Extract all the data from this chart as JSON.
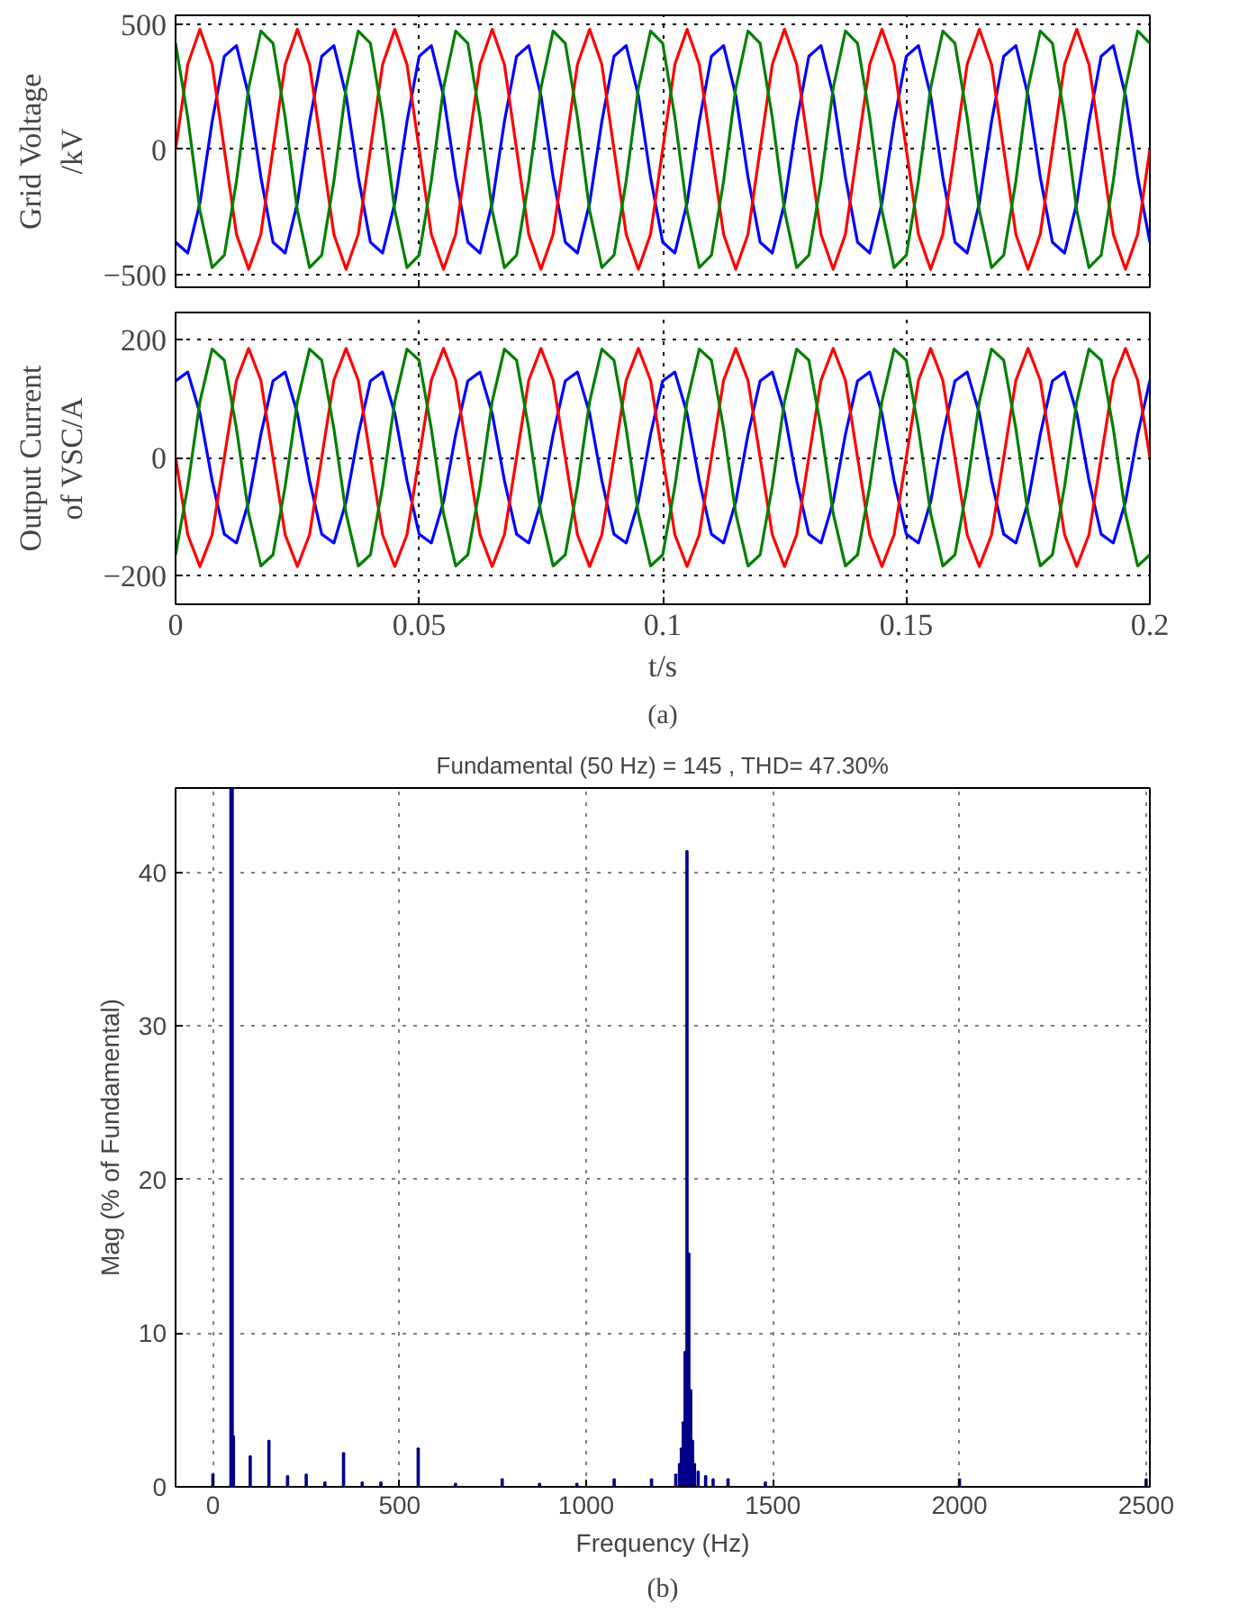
{
  "chart_data": [
    {
      "type": "line",
      "ylabel": "Grid Voltage\n/kV",
      "xlim": [
        0,
        0.2
      ],
      "ylim": [
        -552,
        536
      ],
      "xticks": [
        0,
        0.05,
        0.1,
        0.15,
        0.2
      ],
      "yticks": [
        -500,
        0,
        500
      ],
      "grid": true,
      "tick_labels": "y",
      "line_style": "solid",
      "x": [
        0,
        0.0025,
        0.005,
        0.0075,
        0.01,
        0.0125,
        0.015,
        0.0175,
        0.02,
        0.0225,
        0.025,
        0.0275,
        0.03,
        0.0325,
        0.035,
        0.0375,
        0.04,
        0.0425,
        0.045,
        0.0475,
        0.05,
        0.0525,
        0.055,
        0.0575,
        0.06,
        0.0625,
        0.065,
        0.0675,
        0.07,
        0.0725,
        0.075,
        0.0775,
        0.08,
        0.0825,
        0.085,
        0.0875,
        0.09,
        0.0925,
        0.095,
        0.0975,
        0.1,
        0.1025,
        0.105,
        0.1075,
        0.11,
        0.1125,
        0.115,
        0.1175,
        0.12,
        0.1225,
        0.125,
        0.1275,
        0.13,
        0.1325,
        0.135,
        0.1375,
        0.14,
        0.1425,
        0.145,
        0.1475,
        0.15,
        0.1525,
        0.155,
        0.1575,
        0.16,
        0.1625,
        0.165,
        0.1675,
        0.17,
        0.1725,
        0.175,
        0.1775,
        0.18,
        0.1825,
        0.185,
        0.1875,
        0.19,
        0.1925,
        0.195,
        0.1975,
        0.2
      ],
      "series": [
        {
          "color": "#0000ff",
          "values": [
            -372,
            -415,
            -215,
            111,
            372,
            415,
            215,
            -111,
            -372,
            -415,
            -215,
            111,
            372,
            415,
            215,
            -111,
            -372,
            -415,
            -215,
            111,
            372,
            415,
            215,
            -111,
            -372,
            -415,
            -215,
            111,
            372,
            415,
            215,
            -111,
            -372,
            -415,
            -215,
            111,
            372,
            415,
            215,
            -111,
            -372,
            -415,
            -215,
            111,
            372,
            415,
            215,
            -111,
            -372,
            -415,
            -215,
            111,
            372,
            415,
            215,
            -111,
            -372,
            -415,
            -215,
            111,
            372,
            415,
            215,
            -111,
            -372,
            -415,
            -215,
            111,
            372,
            415,
            215,
            -111,
            -372,
            -415,
            -215,
            111,
            372,
            415,
            215,
            -111,
            -372
          ]
        },
        {
          "color": "#ff0000",
          "values": [
            0,
            340,
            480,
            340,
            0,
            -340,
            -480,
            -340,
            0,
            340,
            480,
            340,
            0,
            -340,
            -480,
            -340,
            0,
            340,
            480,
            340,
            0,
            -340,
            -480,
            -340,
            0,
            340,
            480,
            340,
            0,
            -340,
            -480,
            -340,
            0,
            340,
            480,
            340,
            0,
            -340,
            -480,
            -340,
            0,
            340,
            480,
            340,
            0,
            -340,
            -480,
            -340,
            0,
            340,
            480,
            340,
            0,
            -340,
            -480,
            -340,
            0,
            340,
            480,
            340,
            0,
            -340,
            -480,
            -340,
            0,
            340,
            480,
            340,
            0,
            -340,
            -480,
            -340,
            0,
            340,
            480,
            340,
            0,
            -340,
            -480,
            -340,
            0
          ]
        },
        {
          "color": "#008000",
          "values": [
            424,
            127,
            -245,
            -473,
            -424,
            -127,
            245,
            473,
            424,
            127,
            -245,
            -473,
            -424,
            -127,
            245,
            473,
            424,
            127,
            -245,
            -473,
            -424,
            -127,
            245,
            473,
            424,
            127,
            -245,
            -473,
            -424,
            -127,
            245,
            473,
            424,
            127,
            -245,
            -473,
            -424,
            -127,
            245,
            473,
            424,
            127,
            -245,
            -473,
            -424,
            -127,
            245,
            473,
            424,
            127,
            -245,
            -473,
            -424,
            -127,
            245,
            473,
            424,
            127,
            -245,
            -473,
            -424,
            -127,
            245,
            473,
            424,
            127,
            -245,
            -473,
            -424,
            -127,
            245,
            473,
            424,
            127,
            -245,
            -473,
            -424,
            -127,
            245,
            473,
            424
          ]
        }
      ]
    },
    {
      "type": "line",
      "ylabel": "Output Current\nof VSC/A",
      "xlabel": "t/s",
      "annotations": [
        "(a)"
      ],
      "xlim": [
        0,
        0.2
      ],
      "ylim": [
        -249,
        246
      ],
      "xticks": [
        0,
        0.05,
        0.1,
        0.15,
        0.2
      ],
      "yticks": [
        -200,
        0,
        200
      ],
      "grid": true,
      "line_style": "solid",
      "x": [
        0,
        0.0025,
        0.005,
        0.0075,
        0.01,
        0.0125,
        0.015,
        0.0175,
        0.02,
        0.0225,
        0.025,
        0.0275,
        0.03,
        0.0325,
        0.035,
        0.0375,
        0.04,
        0.0425,
        0.045,
        0.0475,
        0.05,
        0.0525,
        0.055,
        0.0575,
        0.06,
        0.0625,
        0.065,
        0.0675,
        0.07,
        0.0725,
        0.075,
        0.0775,
        0.08,
        0.0825,
        0.085,
        0.0875,
        0.09,
        0.0925,
        0.095,
        0.0975,
        0.1,
        0.1025,
        0.105,
        0.1075,
        0.11,
        0.1125,
        0.115,
        0.1175,
        0.12,
        0.1225,
        0.125,
        0.1275,
        0.13,
        0.1325,
        0.135,
        0.1375,
        0.14,
        0.1425,
        0.145,
        0.1475,
        0.15,
        0.1525,
        0.155,
        0.1575,
        0.16,
        0.1625,
        0.165,
        0.1675,
        0.17,
        0.1725,
        0.175,
        0.1775,
        0.18,
        0.1825,
        0.185,
        0.1875,
        0.19,
        0.1925,
        0.195,
        0.1975,
        0.2
      ],
      "series": [
        {
          "color": "#0000ff",
          "values": [
            130,
            145,
            75,
            -39,
            -130,
            -145,
            -75,
            39,
            130,
            145,
            75,
            -39,
            -130,
            -145,
            -75,
            39,
            130,
            145,
            75,
            -39,
            -130,
            -145,
            -75,
            39,
            130,
            145,
            75,
            -39,
            -130,
            -145,
            -75,
            39,
            130,
            145,
            75,
            -39,
            -130,
            -145,
            -75,
            39,
            130,
            145,
            75,
            -39,
            -130,
            -145,
            -75,
            39,
            130,
            145,
            75,
            -39,
            -130,
            -145,
            -75,
            39,
            130,
            145,
            75,
            -39,
            -130,
            -145,
            -75,
            39,
            130,
            145,
            75,
            -39,
            -130,
            -145,
            -75,
            39,
            130,
            145,
            75,
            -39,
            -130,
            -145,
            -75,
            39,
            130
          ]
        },
        {
          "color": "#ff0000",
          "values": [
            0,
            -131,
            -185,
            -131,
            0,
            131,
            185,
            131,
            0,
            -131,
            -185,
            -131,
            0,
            131,
            185,
            131,
            0,
            -131,
            -185,
            -131,
            0,
            131,
            185,
            131,
            0,
            -131,
            -185,
            -131,
            0,
            131,
            185,
            131,
            0,
            -131,
            -185,
            -131,
            0,
            131,
            185,
            131,
            0,
            -131,
            -185,
            -131,
            0,
            131,
            185,
            131,
            0,
            -131,
            -185,
            -131,
            0,
            131,
            185,
            131,
            0,
            -131,
            -185,
            -131,
            0,
            131,
            185,
            131,
            0,
            -131,
            -185,
            -131,
            0,
            131,
            185,
            131,
            0,
            -131,
            -185,
            -131,
            0,
            131,
            185,
            131,
            0
          ]
        },
        {
          "color": "#008000",
          "values": [
            -165,
            -49,
            95,
            184,
            165,
            49,
            -95,
            -184,
            -165,
            -49,
            95,
            184,
            165,
            49,
            -95,
            -184,
            -165,
            -49,
            95,
            184,
            165,
            49,
            -95,
            -184,
            -165,
            -49,
            95,
            184,
            165,
            49,
            -95,
            -184,
            -165,
            -49,
            95,
            184,
            165,
            49,
            -95,
            -184,
            -165,
            -49,
            95,
            184,
            165,
            49,
            -95,
            -184,
            -165,
            -49,
            95,
            184,
            165,
            49,
            -95,
            -184,
            -165,
            -49,
            95,
            184,
            165,
            49,
            -95,
            -184,
            -165,
            -49,
            95,
            184,
            165,
            49,
            -95,
            -184,
            -165,
            -49,
            95,
            184,
            165,
            49,
            -95,
            -184,
            -165
          ]
        }
      ]
    },
    {
      "type": "bar",
      "title": "Fundamental (50 Hz) = 145 , THD= 47.30%",
      "xlabel": "Frequency (Hz)",
      "ylabel": "Mag (% of Fundamental)",
      "annotations": [
        "(b)"
      ],
      "xlim": [
        -100,
        2510
      ],
      "ylim": [
        0,
        45.5
      ],
      "xticks": [
        0,
        500,
        1000,
        1500,
        2000,
        2500
      ],
      "yticks": [
        0,
        10,
        20,
        30,
        40
      ],
      "grid": true,
      "color": "#00008b",
      "x": [
        0,
        50,
        55,
        100,
        150,
        200,
        250,
        300,
        350,
        400,
        450,
        550,
        650,
        775,
        875,
        975,
        1075,
        1175,
        1240,
        1250,
        1255,
        1260,
        1265,
        1270,
        1275,
        1280,
        1285,
        1290,
        1300,
        1320,
        1340,
        1380,
        1480,
        2000,
        2500
      ],
      "ref_lines": [
        {
          "axis": "x",
          "value": 50,
          "color": "#00008b",
          "line_style": "solid"
        }
      ],
      "values": [
        0.8,
        null,
        3.3,
        2.0,
        3.0,
        0.7,
        0.8,
        0.3,
        2.2,
        0.3,
        0.3,
        2.5,
        0.2,
        0.5,
        0.2,
        0.2,
        0.5,
        0.5,
        0.8,
        1.5,
        2.5,
        4.2,
        8.8,
        41.4,
        15.2,
        6.3,
        3.0,
        1.5,
        1.0,
        0.7,
        0.5,
        0.5,
        0.3,
        0.5,
        0.5
      ]
    }
  ]
}
